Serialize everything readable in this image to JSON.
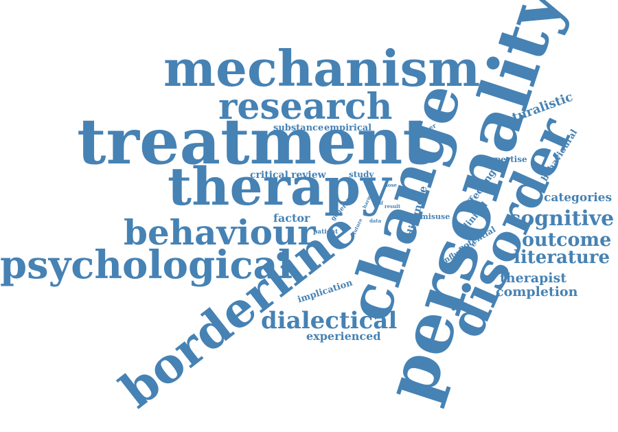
{
  "accent_color": "#4682b4",
  "words": {
    "personality": "personality",
    "mechanism": "mechanism",
    "treatment": "treatment",
    "therapy": "therapy",
    "research": "research",
    "change": "change",
    "disorder": "disorder",
    "borderline": "borderline",
    "psychological": "psychological",
    "behaviour": "behaviour",
    "dialectical": "dialectical",
    "cognitive": "cognitive",
    "outcome": "outcome",
    "literature": "literature",
    "categories": "categories",
    "therapist": "therapist",
    "completion": "completion",
    "naturalistic": "naturalistic",
    "behavioural": "behavioural",
    "expertise": "expertise",
    "affecting": "affecting",
    "clinical": "clinical",
    "potential": "potential",
    "influence": "influence",
    "diagnose": "diagnose",
    "misuse": "misuse",
    "critical": "critical",
    "review": "review",
    "study": "study",
    "factor": "factor",
    "general": "general",
    "patient": "patient",
    "future": "future",
    "data": "data",
    "self": "self",
    "result": "result",
    "harm": "harm",
    "dose": "dose",
    "number": "number",
    "substance": "substance",
    "empirical": "empirical",
    "implication": "implication",
    "experienced": "experienced"
  }
}
